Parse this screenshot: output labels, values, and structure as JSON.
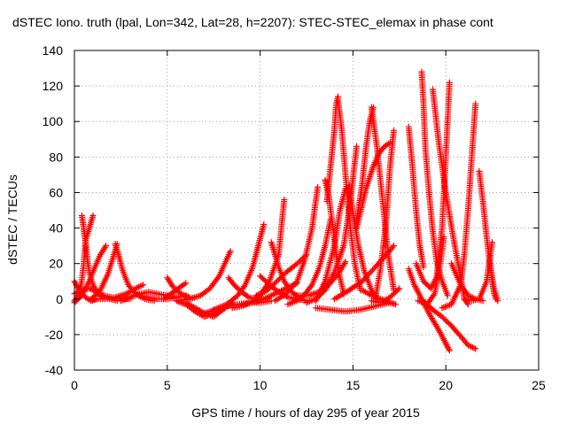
{
  "chart_data": {
    "type": "scatter",
    "title": "dSTEC Iono. truth (lpal, Lon=342, Lat=28, h=2207): STEC-STEC_elemax in phase cont",
    "xlabel": "GPS time / hours of day 295 of year 2015",
    "ylabel": "dSTEC  / TECUs",
    "xlim": [
      0,
      25
    ],
    "ylim": [
      -40,
      140
    ],
    "xticks": [
      0,
      5,
      10,
      15,
      20,
      25
    ],
    "yticks": [
      -40,
      -20,
      0,
      20,
      40,
      60,
      80,
      100,
      120,
      140
    ],
    "grid": true,
    "marker": "+",
    "color": "#ff0000",
    "series": [
      {
        "x": [
          0.0,
          0.3,
          0.6,
          0.9,
          1.2
        ],
        "y": [
          10,
          4,
          1,
          -1,
          0
        ]
      },
      {
        "x": [
          0.0,
          0.2,
          0.4,
          0.5,
          0.6,
          0.8,
          1.0
        ],
        "y": [
          -1,
          2,
          10,
          20,
          33,
          40,
          47
        ]
      },
      {
        "x": [
          0.0,
          0.4,
          0.8,
          1.2,
          1.6,
          2.0,
          2.5,
          3.0
        ],
        "y": [
          3,
          5,
          6,
          4,
          2,
          1,
          0,
          0
        ]
      },
      {
        "x": [
          0.4,
          0.5,
          0.6,
          0.7,
          0.8,
          1.0,
          1.2,
          1.5,
          1.9,
          2.3
        ],
        "y": [
          47,
          40,
          32,
          22,
          15,
          8,
          4,
          1,
          0,
          -1
        ]
      },
      {
        "x": [
          0.0,
          0.4,
          0.8,
          1.1,
          1.4,
          1.7
        ],
        "y": [
          -2,
          2,
          10,
          18,
          25,
          30
        ]
      },
      {
        "x": [
          0.9,
          1.4,
          1.8,
          2.1,
          2.3
        ],
        "y": [
          0,
          5,
          14,
          24,
          31
        ]
      },
      {
        "x": [
          2.2,
          2.4,
          2.6,
          2.9,
          3.3,
          3.8,
          4.3
        ],
        "y": [
          31,
          24,
          16,
          8,
          3,
          0,
          -1
        ]
      },
      {
        "x": [
          1.0,
          1.6,
          2.2,
          2.8,
          3.3,
          3.7
        ],
        "y": [
          0,
          0,
          1,
          3,
          6,
          8
        ]
      },
      {
        "x": [
          2.5,
          3.0,
          3.5,
          4.0,
          4.5,
          5.0,
          5.5
        ],
        "y": [
          -1,
          1,
          3,
          4,
          3,
          2,
          1
        ]
      },
      {
        "x": [
          3.5,
          4.0,
          4.5,
          5.0,
          5.5,
          6.0
        ],
        "y": [
          2,
          1,
          0,
          0,
          1,
          2
        ]
      },
      {
        "x": [
          5.0,
          5.3,
          5.6,
          5.9,
          6.2
        ],
        "y": [
          12,
          7,
          4,
          2,
          1
        ]
      },
      {
        "x": [
          4.8,
          5.2,
          5.6,
          6.0
        ],
        "y": [
          0,
          3,
          6,
          9
        ]
      },
      {
        "x": [
          5.5,
          6.0,
          6.5,
          7.0,
          7.5,
          8.0
        ],
        "y": [
          -1,
          -3,
          -7,
          -10,
          -8,
          -5
        ]
      },
      {
        "x": [
          6.0,
          6.5,
          7.0,
          7.5,
          8.0,
          8.5
        ],
        "y": [
          -2,
          -5,
          -8,
          -10,
          -6,
          -2
        ]
      },
      {
        "x": [
          5.6,
          6.2,
          6.8,
          7.3,
          7.8,
          8.1,
          8.4
        ],
        "y": [
          -1,
          0,
          2,
          6,
          13,
          20,
          27
        ]
      },
      {
        "x": [
          7.0,
          7.6,
          8.2,
          8.8,
          9.4,
          10.0,
          10.6
        ],
        "y": [
          -8,
          -6,
          -4,
          -3,
          -2,
          -2,
          -1
        ]
      },
      {
        "x": [
          7.5,
          8.2,
          8.8,
          9.2,
          9.6,
          9.9,
          10.2
        ],
        "y": [
          -6,
          -3,
          2,
          8,
          18,
          30,
          42
        ]
      },
      {
        "x": [
          8.3,
          8.6,
          9.0,
          9.4,
          9.8,
          10.2
        ],
        "y": [
          12,
          8,
          4,
          1,
          0,
          0
        ]
      },
      {
        "x": [
          8.5,
          9.0,
          9.5,
          10.0,
          10.5,
          11.0,
          11.3
        ],
        "y": [
          -5,
          -4,
          -2,
          2,
          10,
          25,
          56
        ]
      },
      {
        "x": [
          9.0,
          9.6,
          10.2,
          10.8,
          11.4,
          12.0
        ],
        "y": [
          -3,
          -2,
          0,
          3,
          6,
          9
        ]
      },
      {
        "x": [
          9.8,
          10.4,
          10.9,
          11.4,
          12.0,
          12.5
        ],
        "y": [
          2,
          5,
          10,
          15,
          20,
          25
        ]
      },
      {
        "x": [
          10.0,
          10.5,
          11.0,
          11.5,
          12.0,
          12.5
        ],
        "y": [
          13,
          8,
          4,
          1,
          0,
          -1
        ]
      },
      {
        "x": [
          10.6,
          11.0,
          11.3,
          11.7,
          12.1
        ],
        "y": [
          32,
          18,
          10,
          4,
          1
        ]
      },
      {
        "x": [
          10.8,
          11.4,
          12.0,
          12.4,
          12.8,
          13.1
        ],
        "y": [
          -1,
          3,
          10,
          22,
          40,
          63
        ]
      },
      {
        "x": [
          11.5,
          12.2,
          12.8,
          13.2,
          13.5,
          13.8
        ],
        "y": [
          -3,
          0,
          8,
          18,
          30,
          45
        ]
      },
      {
        "x": [
          12.0,
          12.6,
          13.2,
          13.7,
          14.2,
          14.6
        ],
        "y": [
          2,
          2,
          4,
          8,
          14,
          21
        ]
      },
      {
        "x": [
          12.5,
          13.0,
          13.5,
          14.0,
          14.5,
          14.8,
          15.2
        ],
        "y": [
          -2,
          0,
          5,
          15,
          30,
          50,
          86
        ]
      },
      {
        "x": [
          13.5,
          13.7,
          13.9,
          14.1,
          14.3,
          14.5
        ],
        "y": [
          67,
          58,
          42,
          25,
          12,
          3
        ]
      },
      {
        "x": [
          13.6,
          13.8,
          14.0,
          14.1,
          14.2
        ],
        "y": [
          55,
          75,
          95,
          110,
          114
        ]
      },
      {
        "x": [
          14.2,
          14.4,
          14.6,
          14.8,
          15.1,
          15.4
        ],
        "y": [
          112,
          95,
          70,
          45,
          20,
          5
        ]
      },
      {
        "x": [
          13.0,
          13.5,
          14.0,
          14.3,
          14.6
        ],
        "y": [
          -1,
          10,
          30,
          50,
          62
        ]
      },
      {
        "x": [
          14.8,
          15.0,
          15.3,
          15.6,
          16.0,
          16.3
        ],
        "y": [
          64,
          48,
          30,
          16,
          5,
          0
        ]
      },
      {
        "x": [
          15.2,
          15.5,
          15.7,
          15.9,
          16.1
        ],
        "y": [
          44,
          65,
          85,
          100,
          108
        ]
      },
      {
        "x": [
          16.0,
          16.3,
          16.6,
          16.9,
          17.2
        ],
        "y": [
          108,
          85,
          55,
          25,
          5
        ]
      },
      {
        "x": [
          13.0,
          13.8,
          14.6,
          15.4,
          16.2,
          17.0
        ],
        "y": [
          -5,
          -6,
          -7,
          -6,
          -4,
          -2
        ]
      },
      {
        "x": [
          15.2,
          15.7,
          16.1,
          16.4,
          16.7,
          17.0
        ],
        "y": [
          40,
          62,
          75,
          82,
          86,
          88
        ]
      },
      {
        "x": [
          14.0,
          14.8,
          15.5,
          16.2,
          16.8,
          17.2
        ],
        "y": [
          0,
          5,
          10,
          18,
          25,
          30
        ]
      },
      {
        "x": [
          16.2,
          16.5,
          16.8,
          17.0,
          17.2
        ],
        "y": [
          0,
          18,
          45,
          75,
          95
        ]
      },
      {
        "x": [
          15.5,
          16.0,
          16.5,
          17.0,
          17.3
        ],
        "y": [
          5,
          2,
          0,
          -2,
          -3
        ]
      },
      {
        "x": [
          16.0,
          16.5,
          17.0,
          17.5
        ],
        "y": [
          -1,
          -2,
          1,
          6
        ]
      },
      {
        "x": [
          18.0,
          18.2,
          18.4,
          18.6,
          18.8
        ],
        "y": [
          97,
          75,
          50,
          30,
          18
        ]
      },
      {
        "x": [
          18.0,
          18.3,
          18.6,
          18.9,
          19.2,
          19.6,
          20.0,
          20.2
        ],
        "y": [
          17,
          8,
          2,
          -4,
          -10,
          -17,
          -25,
          -29
        ]
      },
      {
        "x": [
          18.5,
          18.9,
          19.3,
          19.8,
          20.3,
          20.8,
          21.2,
          21.6
        ],
        "y": [
          -1,
          -2,
          -6,
          -10,
          -15,
          -21,
          -26,
          -28
        ]
      },
      {
        "x": [
          18.7,
          18.8,
          18.9,
          19.1,
          19.3,
          19.5,
          19.8,
          20.1
        ],
        "y": [
          128,
          110,
          85,
          60,
          38,
          22,
          10,
          2
        ]
      },
      {
        "x": [
          18.4,
          18.8,
          19.2,
          19.5,
          19.8,
          20.0,
          20.2
        ],
        "y": [
          20,
          10,
          6,
          12,
          40,
          80,
          122
        ]
      },
      {
        "x": [
          18.6,
          19.0,
          19.4,
          19.7,
          19.9
        ],
        "y": [
          -1,
          -3,
          3,
          20,
          35
        ]
      },
      {
        "x": [
          19.3,
          19.6,
          20.0,
          20.4,
          20.8,
          21.0,
          21.2
        ],
        "y": [
          118,
          90,
          60,
          35,
          12,
          0,
          -3
        ]
      },
      {
        "x": [
          19.8,
          20.3,
          20.8,
          21.0,
          21.2,
          21.4,
          21.6
        ],
        "y": [
          -5,
          -3,
          8,
          25,
          50,
          80,
          110
        ]
      },
      {
        "x": [
          20.3,
          20.8,
          21.2,
          21.6,
          22.0
        ],
        "y": [
          20,
          8,
          2,
          0,
          -1
        ]
      },
      {
        "x": [
          21.8,
          22.0,
          22.2,
          22.4,
          22.6,
          22.8
        ],
        "y": [
          72,
          55,
          35,
          18,
          6,
          -1
        ]
      },
      {
        "x": [
          21.0,
          21.4,
          21.8,
          22.2,
          22.5
        ],
        "y": [
          0,
          -1,
          0,
          10,
          32
        ]
      },
      {
        "x": [
          22.4,
          22.5,
          22.6,
          22.7
        ],
        "y": [
          20,
          10,
          3,
          0
        ]
      }
    ]
  }
}
